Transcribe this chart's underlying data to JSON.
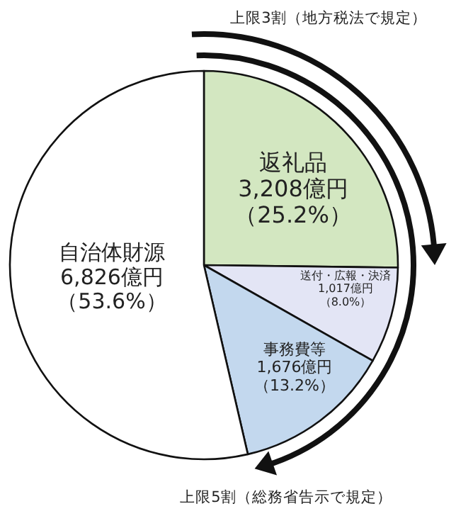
{
  "chart_data": {
    "type": "pie",
    "categories": [
      "返礼品",
      "送付・広報・決済",
      "事務費等",
      "自治体財源"
    ],
    "values": [
      3208,
      1017,
      1676,
      6826
    ],
    "value_labels": [
      "3,208億円（25.2%）",
      "1,017億円（8.0%）",
      "1,676億円（13.2%）",
      "6,826億円（53.6%）"
    ],
    "colors": [
      "#d3e7c1",
      "#e3e5f5",
      "#c3d8ee",
      "#ffffff"
    ],
    "annotations": [
      "上限3割（地方税法で規定）",
      "上限5割（総務省告示で規定）"
    ]
  }
}
